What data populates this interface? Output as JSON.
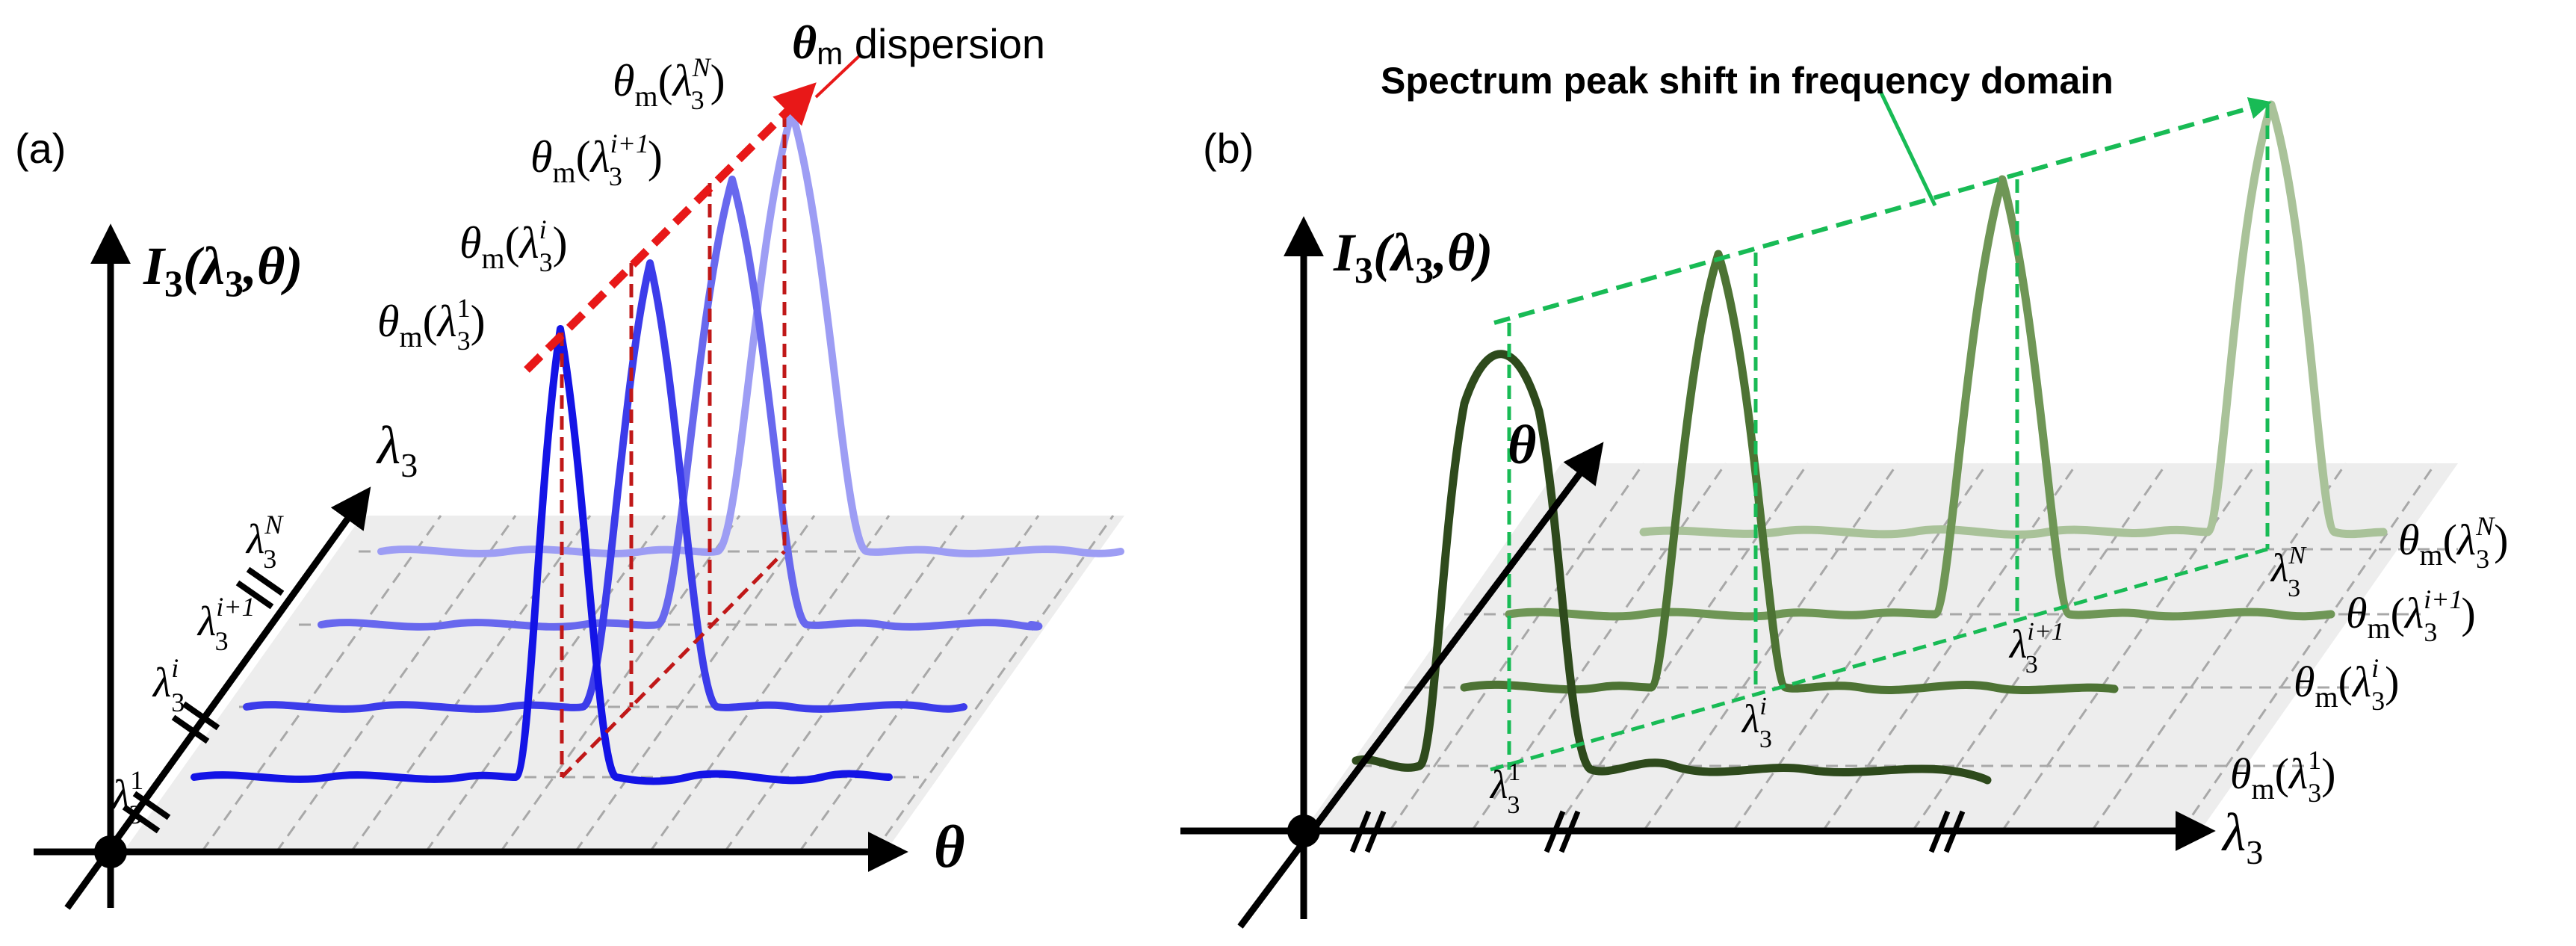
{
  "panel_a": {
    "label": "(a)",
    "y_axis": {
      "sym": "I",
      "sub": "3",
      "args": "(λ",
      "args_sub": "3",
      "args_tail": ",θ)"
    },
    "x_axis": "θ",
    "z_axis": {
      "sym": "λ",
      "sub": "3"
    },
    "ticks": [
      {
        "base": "λ",
        "sub": "3",
        "sup": "1"
      },
      {
        "base": "λ",
        "sub": "3",
        "sup": "i"
      },
      {
        "base": "λ",
        "sub": "3",
        "sup": "i+1"
      },
      {
        "base": "λ",
        "sub": "3",
        "sup": "N"
      }
    ],
    "peak_labels": [
      {
        "fn": "θ",
        "fn_sub": "m",
        "base": "λ",
        "sub": "3",
        "sup": "1"
      },
      {
        "fn": "θ",
        "fn_sub": "m",
        "base": "λ",
        "sub": "3",
        "sup": "i"
      },
      {
        "fn": "θ",
        "fn_sub": "m",
        "base": "λ",
        "sub": "3",
        "sup": "i+1"
      },
      {
        "fn": "θ",
        "fn_sub": "m",
        "base": "λ",
        "sub": "3",
        "sup": "N"
      }
    ],
    "dispersion": {
      "sym": "θ",
      "sub": "m",
      "text": " dispersion"
    }
  },
  "panel_b": {
    "label": "(b)",
    "y_axis": {
      "sym": "I",
      "sub": "3",
      "args": "(λ",
      "args_sub": "3",
      "args_tail": ",θ)"
    },
    "x_axis": {
      "sym": "λ",
      "sub": "3"
    },
    "z_axis": "θ",
    "ticks": [
      {
        "base": "λ",
        "sub": "3",
        "sup": "1"
      },
      {
        "base": "λ",
        "sub": "3",
        "sup": "i"
      },
      {
        "base": "λ",
        "sub": "3",
        "sup": "i+1"
      },
      {
        "base": "λ",
        "sub": "3",
        "sup": "N"
      }
    ],
    "row_labels": [
      {
        "fn": "θ",
        "fn_sub": "m",
        "base": "λ",
        "sub": "3",
        "sup": "1"
      },
      {
        "fn": "θ",
        "fn_sub": "m",
        "base": "λ",
        "sub": "3",
        "sup": "i"
      },
      {
        "fn": "θ",
        "fn_sub": "m",
        "base": "λ",
        "sub": "3",
        "sup": "i+1"
      },
      {
        "fn": "θ",
        "fn_sub": "m",
        "base": "λ",
        "sub": "3",
        "sup": "N"
      }
    ],
    "shift_title": "Spectrum peak shift in frequency domain"
  },
  "colors": {
    "a_curves": [
      "#1414e6",
      "#3c3cea",
      "#6868ee",
      "#9d9df4"
    ],
    "dispersion": "#e81818",
    "dashed_red": "#c01818",
    "b_curves": [
      "#2e4a1c",
      "#4d7334",
      "#6f9656",
      "#a9c299"
    ],
    "green_dash": "#18bb55",
    "plane": "#ededed",
    "grid": "#a8a8a8"
  }
}
